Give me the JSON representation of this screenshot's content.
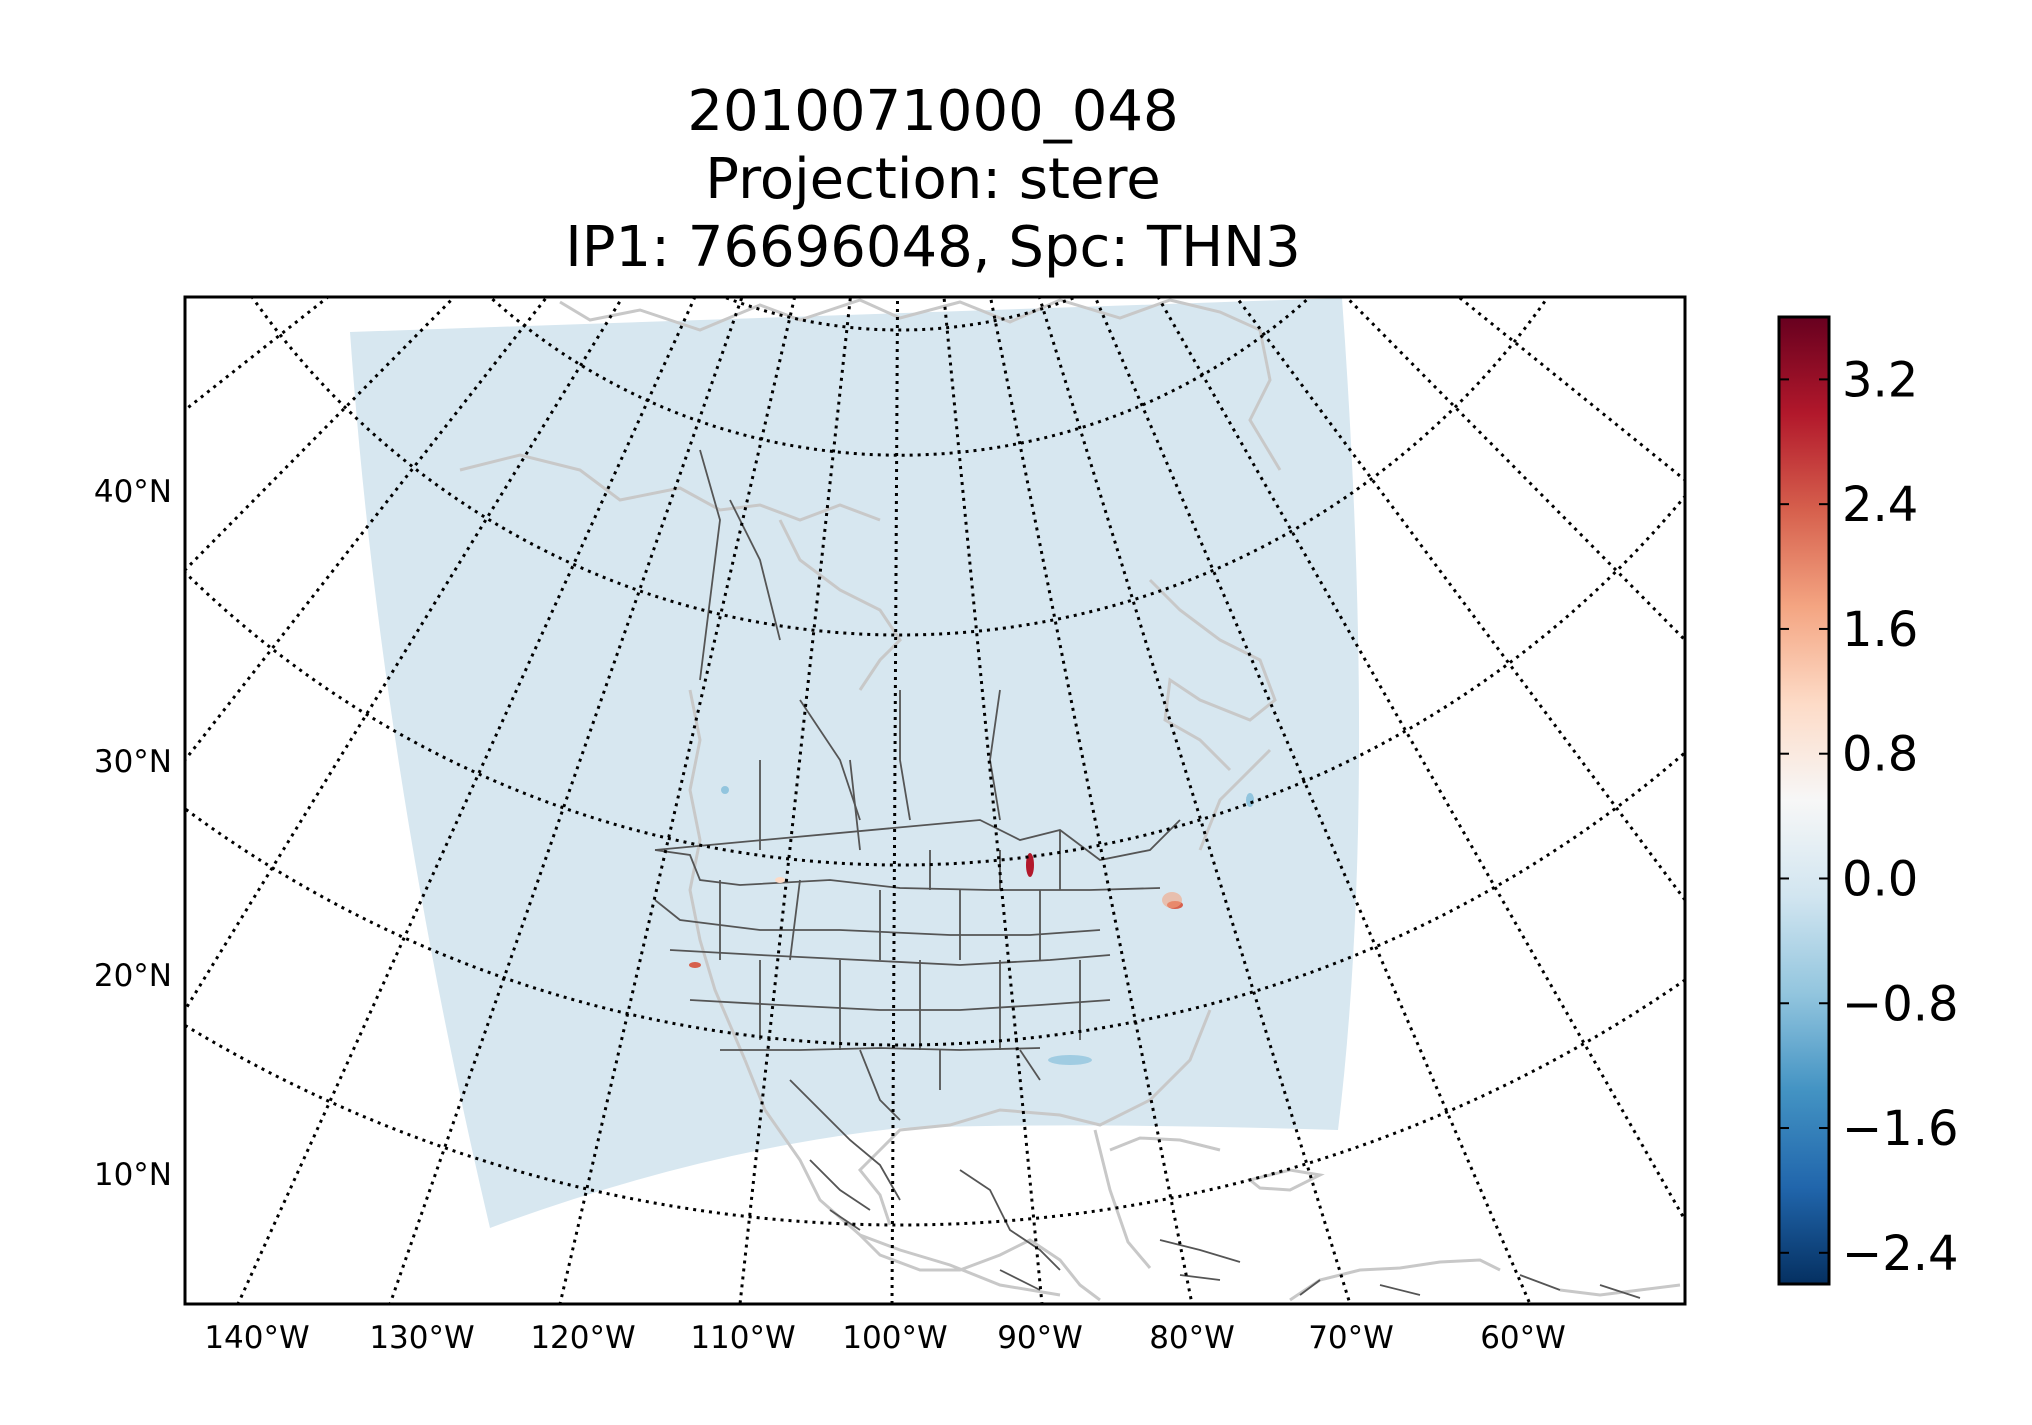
{
  "title": {
    "line1": "2010071000_048",
    "line2": "Projection: stere",
    "line3": "IP1: 76696048, Spc: THN3"
  },
  "map": {
    "projection": "stere",
    "latitude_labels": [
      "40°N",
      "30°N",
      "20°N",
      "10°N"
    ],
    "longitude_labels": [
      "140°W",
      "130°W",
      "120°W",
      "110°W",
      "100°W",
      "90°W",
      "80°W",
      "70°W",
      "60°W"
    ],
    "graticule_style": "dotted black",
    "domain_fill_color": "#d7e7f0",
    "coastline_color": "#c8c8c8",
    "political_border_color": "#555555"
  },
  "colorbar": {
    "cmap": "RdBu_r",
    "range": [
      -2.6,
      3.6
    ],
    "ticks": [
      "3.2",
      "2.4",
      "1.6",
      "0.8",
      "0.0",
      "−0.8",
      "−1.6",
      "−2.4"
    ],
    "tick_values": [
      3.2,
      2.4,
      1.6,
      0.8,
      0.0,
      -0.8,
      -1.6,
      -2.4
    ],
    "colors": [
      "#053061",
      "#2166ac",
      "#4393c3",
      "#92c5de",
      "#d1e5f0",
      "#f7f7f7",
      "#fddbc7",
      "#f4a582",
      "#d6604d",
      "#b2182b",
      "#67001f"
    ]
  }
}
